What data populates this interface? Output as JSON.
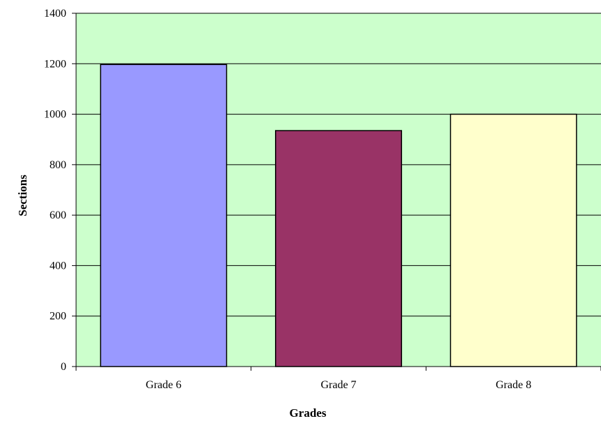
{
  "chart_data": {
    "type": "bar",
    "categories": [
      "Grade 6",
      "Grade 7",
      "Grade 8"
    ],
    "values": [
      1197,
      935,
      1000
    ],
    "bar_colors": [
      "#9999FF",
      "#993366",
      "#FFFFCC"
    ],
    "plot_background": "#CCFFCC",
    "xlabel": "Grades",
    "ylabel": "Sections",
    "ylim": [
      0,
      1400
    ],
    "yticks": [
      0,
      200,
      400,
      600,
      800,
      1000,
      1200,
      1400
    ],
    "grid": true,
    "legend": "none"
  }
}
